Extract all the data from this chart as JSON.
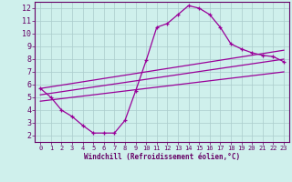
{
  "xlabel": "Windchill (Refroidissement éolien,°C)",
  "bg_color": "#cff0ec",
  "grid_color": "#aacccc",
  "line_color": "#990099",
  "xlim": [
    -0.5,
    23.5
  ],
  "ylim": [
    1.5,
    12.5
  ],
  "xticks": [
    0,
    1,
    2,
    3,
    4,
    5,
    6,
    7,
    8,
    9,
    10,
    11,
    12,
    13,
    14,
    15,
    16,
    17,
    18,
    19,
    20,
    21,
    22,
    23
  ],
  "yticks": [
    2,
    3,
    4,
    5,
    6,
    7,
    8,
    9,
    10,
    11,
    12
  ],
  "curve_x": [
    0,
    1,
    2,
    3,
    4,
    5,
    6,
    7,
    8,
    9,
    10,
    11,
    12,
    13,
    14,
    15,
    16,
    17,
    18,
    19,
    20,
    21,
    22,
    23
  ],
  "curve_y": [
    5.7,
    5.0,
    4.0,
    3.5,
    2.8,
    2.2,
    2.2,
    2.2,
    3.2,
    5.5,
    7.9,
    10.5,
    10.8,
    11.5,
    12.2,
    12.0,
    11.5,
    10.5,
    9.2,
    8.8,
    8.5,
    8.3,
    8.2,
    7.8
  ],
  "line1_x": [
    0,
    23
  ],
  "line1_y": [
    5.7,
    8.7
  ],
  "line2_x": [
    0,
    23
  ],
  "line2_y": [
    5.2,
    8.0
  ],
  "line3_x": [
    0,
    23
  ],
  "line3_y": [
    4.7,
    7.0
  ]
}
